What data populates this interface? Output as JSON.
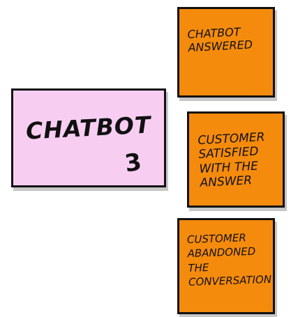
{
  "chatbot": {
    "label": "CHATBOT",
    "hint": "3"
  },
  "stickies": [
    {
      "text": "CHATBOT\nANSWERED"
    },
    {
      "text": "CUSTOMER\nSATISFIED\nWITH THE\nANSWER"
    },
    {
      "text": "CUSTOMER\nABANDONED THE\nCONVERSATION"
    }
  ],
  "colors": {
    "chatbot_fill": "#f7cef2",
    "sticky_fill": "#f58b0c",
    "ink": "#111111"
  }
}
